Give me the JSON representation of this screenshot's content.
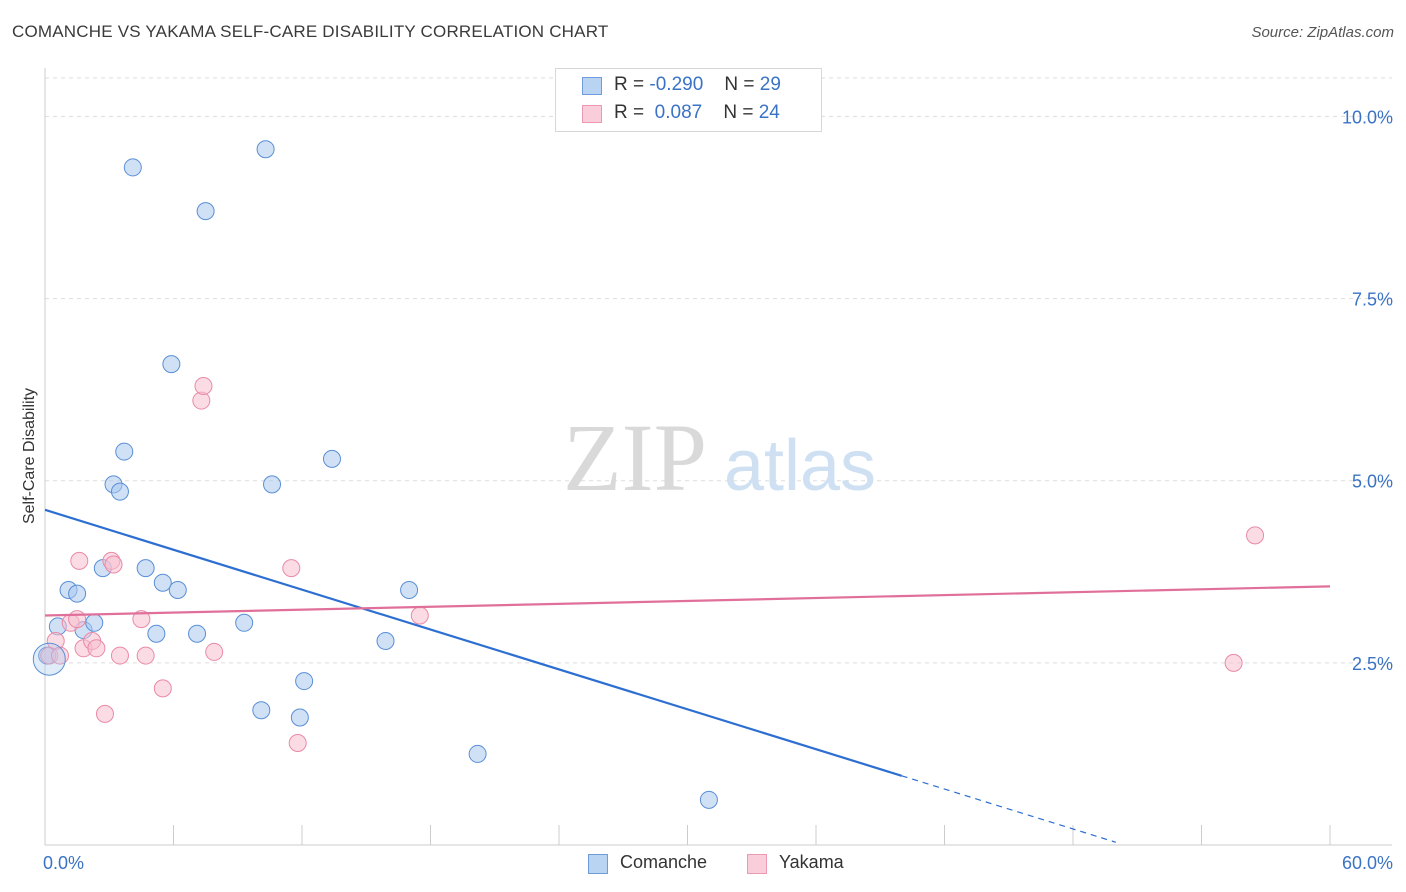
{
  "title": "COMANCHE VS YAKAMA SELF-CARE DISABILITY CORRELATION CHART",
  "source": "Source: ZipAtlas.com",
  "watermark": {
    "zip": "ZIP",
    "atlas": "atlas"
  },
  "legend": {
    "series": [
      {
        "r_label": "R =",
        "r_value": "-0.290",
        "n_label": "N =",
        "n_value": "29"
      },
      {
        "r_label": "R =",
        "r_value": " 0.087",
        "n_label": "N =",
        "n_value": "24"
      }
    ]
  },
  "chart_data": {
    "type": "scatter",
    "title": "COMANCHE VS YAKAMA SELF-CARE DISABILITY CORRELATION CHART",
    "xlabel": "",
    "ylabel": "Self-Care Disability",
    "xlim": [
      0,
      60
    ],
    "ylim": [
      0,
      10.5
    ],
    "x_tick_labels": [
      "0.0%",
      "60.0%"
    ],
    "y_ticks": [
      2.5,
      5.0,
      7.5,
      10.0
    ],
    "y_tick_labels": [
      "2.5%",
      "5.0%",
      "7.5%",
      "10.0%"
    ],
    "legend_position": "top-center",
    "series": [
      {
        "name": "Comanche",
        "color": "#a9c8ee",
        "stroke": "#5a8fd6",
        "line_color": "#2d6fd1",
        "r": -0.29,
        "n": 29,
        "trend": {
          "x0": 0,
          "y0": 4.6,
          "x1": 40,
          "y1": 0.95,
          "dash_to_x": 50
        },
        "points": [
          {
            "x": 0.1,
            "y": 2.6
          },
          {
            "x": 0.6,
            "y": 3.0
          },
          {
            "x": 1.1,
            "y": 3.5
          },
          {
            "x": 1.5,
            "y": 3.45
          },
          {
            "x": 1.8,
            "y": 2.95
          },
          {
            "x": 2.3,
            "y": 3.05
          },
          {
            "x": 2.7,
            "y": 3.8
          },
          {
            "x": 3.2,
            "y": 4.95
          },
          {
            "x": 3.5,
            "y": 4.85
          },
          {
            "x": 3.7,
            "y": 5.4
          },
          {
            "x": 4.7,
            "y": 3.8
          },
          {
            "x": 5.2,
            "y": 2.9
          },
          {
            "x": 5.5,
            "y": 3.6
          },
          {
            "x": 6.2,
            "y": 3.5
          },
          {
            "x": 7.1,
            "y": 2.9
          },
          {
            "x": 9.3,
            "y": 3.05
          },
          {
            "x": 10.1,
            "y": 1.85
          },
          {
            "x": 10.6,
            "y": 4.95
          },
          {
            "x": 11.9,
            "y": 1.75
          },
          {
            "x": 12.1,
            "y": 2.25
          },
          {
            "x": 13.4,
            "y": 5.3
          },
          {
            "x": 15.9,
            "y": 2.8
          },
          {
            "x": 17.0,
            "y": 3.5
          },
          {
            "x": 20.2,
            "y": 1.25
          },
          {
            "x": 31.0,
            "y": 0.62
          },
          {
            "x": 4.1,
            "y": 9.3
          },
          {
            "x": 10.3,
            "y": 9.55
          },
          {
            "x": 7.5,
            "y": 8.7
          },
          {
            "x": 5.9,
            "y": 6.6
          }
        ]
      },
      {
        "name": "Yakama",
        "color": "#f7bfd0",
        "stroke": "#e98aa7",
        "line_color": "#e0709a",
        "r": 0.087,
        "n": 24,
        "trend": {
          "x0": 0,
          "y0": 3.15,
          "x1": 60,
          "y1": 3.55
        },
        "points": [
          {
            "x": 0.2,
            "y": 2.6
          },
          {
            "x": 0.5,
            "y": 2.8
          },
          {
            "x": 0.7,
            "y": 2.6
          },
          {
            "x": 1.2,
            "y": 3.05
          },
          {
            "x": 1.5,
            "y": 3.1
          },
          {
            "x": 1.6,
            "y": 3.9
          },
          {
            "x": 1.8,
            "y": 2.7
          },
          {
            "x": 2.2,
            "y": 2.8
          },
          {
            "x": 2.4,
            "y": 2.7
          },
          {
            "x": 2.8,
            "y": 1.8
          },
          {
            "x": 3.1,
            "y": 3.9
          },
          {
            "x": 3.2,
            "y": 3.85
          },
          {
            "x": 3.5,
            "y": 2.6
          },
          {
            "x": 4.5,
            "y": 3.1
          },
          {
            "x": 4.7,
            "y": 2.6
          },
          {
            "x": 5.5,
            "y": 2.15
          },
          {
            "x": 7.3,
            "y": 6.1
          },
          {
            "x": 7.4,
            "y": 6.3
          },
          {
            "x": 7.9,
            "y": 2.65
          },
          {
            "x": 11.5,
            "y": 3.8
          },
          {
            "x": 11.8,
            "y": 1.4
          },
          {
            "x": 17.5,
            "y": 3.15
          },
          {
            "x": 55.5,
            "y": 2.5
          },
          {
            "x": 56.5,
            "y": 4.25
          }
        ]
      }
    ]
  }
}
